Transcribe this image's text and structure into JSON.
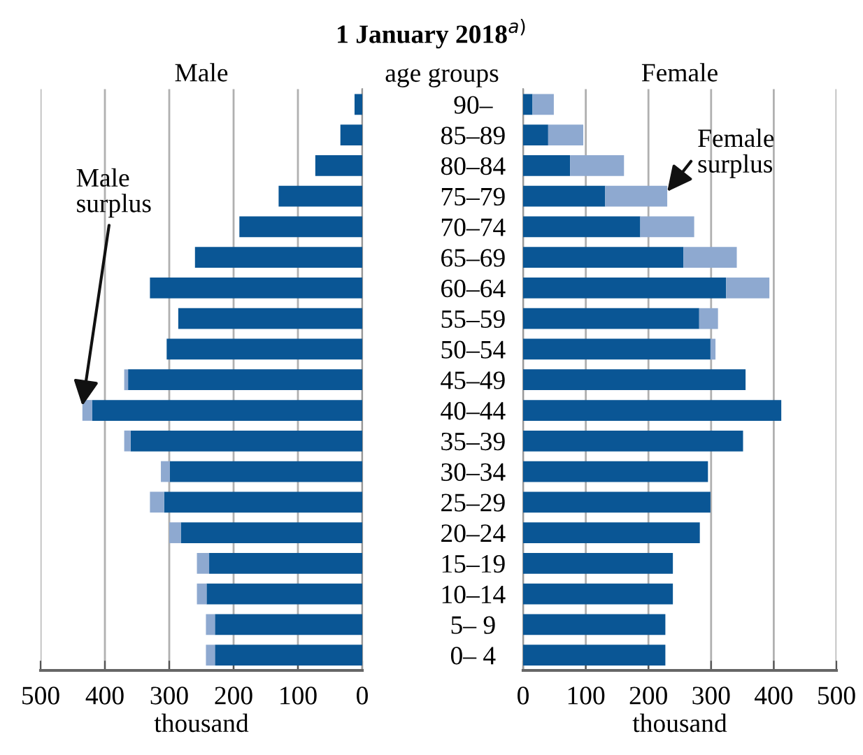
{
  "chart_data": [
    {
      "type": "bar",
      "orientation": "horizontal",
      "stacked": true,
      "title": "Male",
      "ylabel": "age groups",
      "xlabel": "thousand",
      "categories": [
        "90–",
        "85–89",
        "80–84",
        "75–79",
        "70–74",
        "65–69",
        "60–64",
        "55–59",
        "50–54",
        "45–49",
        "40–44",
        "35–39",
        "30–34",
        "25–29",
        "20–24",
        "15–19",
        "10–14",
        "5– 9",
        "0– 4"
      ],
      "series": [
        {
          "color": "#0a5695",
          "values": [
            12,
            34,
            73,
            130,
            191,
            260,
            330,
            286,
            304,
            364,
            420,
            360,
            299,
            308,
            282,
            238,
            242,
            229,
            229
          ]
        },
        {
          "color": "#8ea9d0",
          "values": [
            0,
            0,
            0,
            0,
            0,
            0,
            0,
            0,
            0,
            6,
            15,
            10,
            14,
            22,
            18,
            19,
            15,
            14,
            14
          ]
        }
      ],
      "xlim": [
        500,
        0
      ],
      "xticks": [
        500,
        400,
        300,
        200,
        100,
        0
      ],
      "grid": "x",
      "annotations": [
        "1 January 2018$^{a)}$",
        {
          "text": "Male\nsurplus",
          "x": 435,
          "y": "40–44"
        }
      ]
    },
    {
      "type": "bar",
      "orientation": "horizontal",
      "stacked": true,
      "title": "Female",
      "xlabel": "thousand",
      "categories": [
        "90–",
        "85–89",
        "80–84",
        "75–79",
        "70–74",
        "65–69",
        "60–64",
        "55–59",
        "50–54",
        "45–49",
        "40–44",
        "35–39",
        "30–34",
        "25–29",
        "20–24",
        "15–19",
        "10–14",
        "5– 9",
        "0– 4"
      ],
      "series": [
        {
          "color": "#0a5695",
          "values": [
            15,
            40,
            75,
            131,
            187,
            256,
            324,
            281,
            299,
            355,
            412,
            351,
            295,
            299,
            282,
            239,
            239,
            227,
            227
          ]
        },
        {
          "color": "#8ea9d0",
          "values": [
            34,
            56,
            86,
            99,
            86,
            85,
            69,
            30,
            8,
            0,
            0,
            0,
            0,
            0,
            0,
            0,
            0,
            0,
            0
          ]
        }
      ],
      "xlim": [
        0,
        500
      ],
      "xticks": [
        0,
        100,
        200,
        300,
        400,
        500
      ],
      "grid": "x",
      "tick_labels": "x",
      "annotations": [
        {
          "text": "Female\nsurplus",
          "x": 230,
          "y": "75–79"
        }
      ]
    }
  ]
}
